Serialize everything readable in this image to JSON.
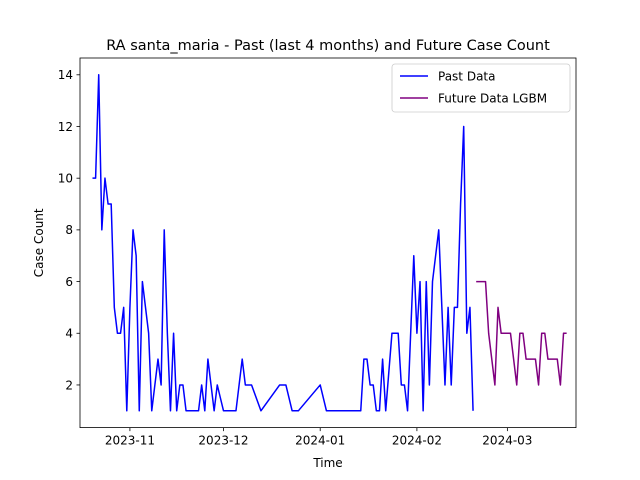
{
  "chart_data": {
    "type": "line",
    "title": "RA santa_maria - Past (last 4 months) and Future Case Count",
    "xlabel": "Time",
    "ylabel": "Case Count",
    "xlim": [
      "2023-10-16",
      "2024-03-23"
    ],
    "ylim": [
      0.35,
      14.65
    ],
    "x_ticks": [
      "2023-11",
      "2023-12",
      "2024-01",
      "2024-02",
      "2024-03"
    ],
    "y_ticks": [
      2,
      4,
      6,
      8,
      10,
      12,
      14
    ],
    "grid": false,
    "legend": "top-right",
    "series": [
      {
        "name": "Past Data",
        "color": "#0000ff",
        "points": [
          [
            "2023-10-20",
            10
          ],
          [
            "2023-10-21",
            10
          ],
          [
            "2023-10-22",
            14
          ],
          [
            "2023-10-23",
            8
          ],
          [
            "2023-10-24",
            10
          ],
          [
            "2023-10-25",
            9
          ],
          [
            "2023-10-26",
            9
          ],
          [
            "2023-10-27",
            5
          ],
          [
            "2023-10-28",
            4
          ],
          [
            "2023-10-29",
            4
          ],
          [
            "2023-10-30",
            5
          ],
          [
            "2023-10-31",
            1
          ],
          [
            "2023-11-01",
            5
          ],
          [
            "2023-11-02",
            8
          ],
          [
            "2023-11-03",
            7
          ],
          [
            "2023-11-04",
            1
          ],
          [
            "2023-11-05",
            6
          ],
          [
            "2023-11-06",
            5
          ],
          [
            "2023-11-07",
            4
          ],
          [
            "2023-11-08",
            1
          ],
          [
            "2023-11-09",
            2
          ],
          [
            "2023-11-10",
            3
          ],
          [
            "2023-11-11",
            2
          ],
          [
            "2023-11-12",
            8
          ],
          [
            "2023-11-13",
            4
          ],
          [
            "2023-11-14",
            1
          ],
          [
            "2023-11-15",
            4
          ],
          [
            "2023-11-16",
            1
          ],
          [
            "2023-11-17",
            2
          ],
          [
            "2023-11-18",
            2
          ],
          [
            "2023-11-19",
            1
          ],
          [
            "2023-11-23",
            1
          ],
          [
            "2023-11-24",
            2
          ],
          [
            "2023-11-25",
            1
          ],
          [
            "2023-11-26",
            3
          ],
          [
            "2023-11-27",
            2
          ],
          [
            "2023-11-28",
            1
          ],
          [
            "2023-11-29",
            2
          ],
          [
            "2023-11-30",
            1.5
          ],
          [
            "2023-12-01",
            1
          ],
          [
            "2023-12-05",
            1
          ],
          [
            "2023-12-06",
            2
          ],
          [
            "2023-12-07",
            3
          ],
          [
            "2023-12-08",
            2
          ],
          [
            "2023-12-10",
            2
          ],
          [
            "2023-12-13",
            1
          ],
          [
            "2023-12-19",
            2
          ],
          [
            "2023-12-21",
            2
          ],
          [
            "2023-12-23",
            1
          ],
          [
            "2023-12-25",
            1
          ],
          [
            "2024-01-01",
            2
          ],
          [
            "2024-01-03",
            1
          ],
          [
            "2024-01-14",
            1
          ],
          [
            "2024-01-15",
            3
          ],
          [
            "2024-01-16",
            3
          ],
          [
            "2024-01-17",
            2
          ],
          [
            "2024-01-18",
            2
          ],
          [
            "2024-01-19",
            1
          ],
          [
            "2024-01-20",
            1
          ],
          [
            "2024-01-21",
            3
          ],
          [
            "2024-01-22",
            1
          ],
          [
            "2024-01-24",
            4
          ],
          [
            "2024-01-26",
            4
          ],
          [
            "2024-01-27",
            2
          ],
          [
            "2024-01-28",
            2
          ],
          [
            "2024-01-29",
            1
          ],
          [
            "2024-01-31",
            7
          ],
          [
            "2024-02-01",
            4
          ],
          [
            "2024-02-02",
            6
          ],
          [
            "2024-02-03",
            1
          ],
          [
            "2024-02-04",
            6
          ],
          [
            "2024-02-05",
            2
          ],
          [
            "2024-02-06",
            6
          ],
          [
            "2024-02-07",
            7
          ],
          [
            "2024-02-08",
            8
          ],
          [
            "2024-02-09",
            5
          ],
          [
            "2024-02-10",
            2
          ],
          [
            "2024-02-11",
            5
          ],
          [
            "2024-02-12",
            2
          ],
          [
            "2024-02-13",
            5
          ],
          [
            "2024-02-14",
            5
          ],
          [
            "2024-02-15",
            9
          ],
          [
            "2024-02-16",
            12
          ],
          [
            "2024-02-17",
            4
          ],
          [
            "2024-02-18",
            5
          ],
          [
            "2024-02-19",
            1
          ]
        ]
      },
      {
        "name": "Future Data LGBM",
        "color": "#800080",
        "points": [
          [
            "2024-02-20",
            6
          ],
          [
            "2024-02-21",
            6
          ],
          [
            "2024-02-22",
            6
          ],
          [
            "2024-02-23",
            6
          ],
          [
            "2024-02-24",
            4
          ],
          [
            "2024-02-25",
            3
          ],
          [
            "2024-02-26",
            2
          ],
          [
            "2024-02-27",
            5
          ],
          [
            "2024-02-28",
            4
          ],
          [
            "2024-02-29",
            4
          ],
          [
            "2024-03-01",
            4
          ],
          [
            "2024-03-02",
            4
          ],
          [
            "2024-03-03",
            3
          ],
          [
            "2024-03-04",
            2
          ],
          [
            "2024-03-05",
            4
          ],
          [
            "2024-03-06",
            4
          ],
          [
            "2024-03-07",
            3
          ],
          [
            "2024-03-08",
            3
          ],
          [
            "2024-03-09",
            3
          ],
          [
            "2024-03-10",
            3
          ],
          [
            "2024-03-11",
            2
          ],
          [
            "2024-03-12",
            4
          ],
          [
            "2024-03-13",
            4
          ],
          [
            "2024-03-14",
            3
          ],
          [
            "2024-03-15",
            3
          ],
          [
            "2024-03-16",
            3
          ],
          [
            "2024-03-17",
            3
          ],
          [
            "2024-03-18",
            2
          ],
          [
            "2024-03-19",
            4
          ],
          [
            "2024-03-20",
            4
          ]
        ]
      }
    ]
  }
}
